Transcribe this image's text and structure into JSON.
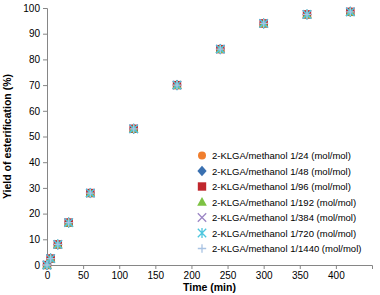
{
  "chart_data": {
    "type": "scatter",
    "x_label": "Time (min)",
    "y_label": "Yield of esterification (%)",
    "x": [
      0,
      5,
      15,
      30,
      60,
      120,
      180,
      240,
      300,
      360,
      420
    ],
    "xlim": [
      0,
      450
    ],
    "xticks": [
      0,
      50,
      100,
      150,
      200,
      250,
      300,
      350,
      400
    ],
    "ylim": [
      0,
      100
    ],
    "yticks": [
      0,
      10,
      20,
      30,
      40,
      50,
      60,
      70,
      80,
      90,
      100
    ],
    "grid": false,
    "legend": "lower right",
    "series": [
      {
        "name": "2-KLGA/methanol 1/24 (mol/mol)",
        "color": "#f07e2e",
        "marker": "circle",
        "values": [
          0,
          2.5,
          8,
          16.5,
          28,
          53,
          70,
          84,
          94,
          97.5,
          98.5
        ]
      },
      {
        "name": "2-KLGA/methanol 1/48 (mol/mol)",
        "color": "#3a70b0",
        "marker": "diamond",
        "values": [
          0,
          2.5,
          8,
          16.5,
          28,
          53,
          70,
          84,
          94,
          97.5,
          98.5
        ]
      },
      {
        "name": "2-KLGA/methanol 1/96 (mol/mol)",
        "color": "#c0272d",
        "marker": "square",
        "values": [
          0,
          2.5,
          8,
          16.5,
          28,
          53,
          70,
          84,
          94,
          97.5,
          98.5
        ]
      },
      {
        "name": "2-KLGA/methanol 1/192 (mol/mol)",
        "color": "#7dc243",
        "marker": "triangle",
        "values": [
          0,
          2.5,
          8,
          16.5,
          28,
          53,
          70,
          84,
          94,
          97.5,
          98.5
        ]
      },
      {
        "name": "2-KLGA/methanol 1/384 (mol/mol)",
        "color": "#9b85c4",
        "marker": "x",
        "values": [
          0,
          2.5,
          8,
          16.5,
          28,
          53,
          70,
          84,
          94,
          97.5,
          98.5
        ]
      },
      {
        "name": "2-KLGA/methanol 1/720 (mol/mol)",
        "color": "#4cc6de",
        "marker": "asterisk",
        "values": [
          0,
          2.5,
          8,
          16.5,
          28,
          53,
          70,
          84,
          94,
          97.5,
          98.5
        ]
      },
      {
        "name": "2-KLGA/methanol 1/1440 (mol/mol)",
        "color": "#a9c3e3",
        "marker": "plus",
        "values": [
          0,
          2.5,
          8,
          16.5,
          28,
          53,
          70,
          84,
          94,
          97.5,
          98.5
        ]
      }
    ]
  }
}
